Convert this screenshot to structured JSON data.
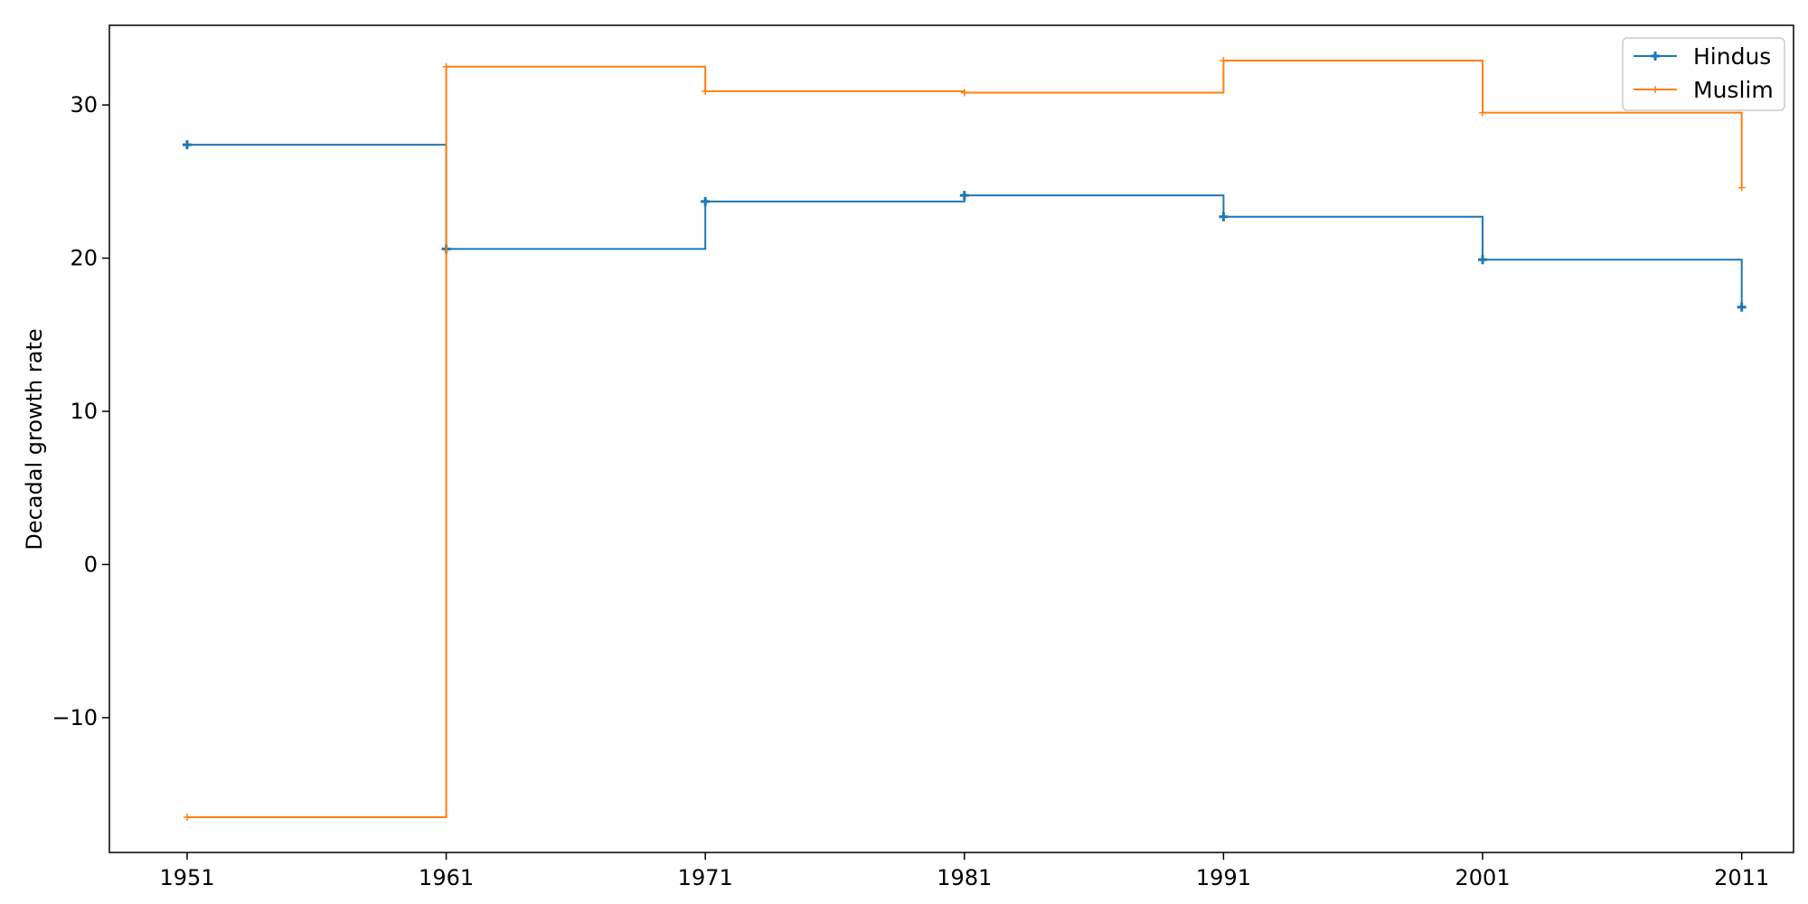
{
  "chart_data": {
    "type": "line",
    "drawstyle": "steps-post",
    "title": "",
    "xlabel": "",
    "ylabel": "Decadal growth rate",
    "x": [
      1951,
      1961,
      1971,
      1981,
      1991,
      2001,
      2011
    ],
    "x_tick_labels": [
      "1951",
      "1961",
      "1971",
      "1981",
      "1991",
      "2001",
      "2011"
    ],
    "xlim": [
      1948,
      2013
    ],
    "ylim": [
      -18.8,
      35.2
    ],
    "y_ticks": [
      -10,
      0,
      10,
      20,
      30
    ],
    "y_tick_labels": [
      "−10",
      "0",
      "10",
      "20",
      "30"
    ],
    "grid": false,
    "legend_position": "top-right",
    "series": [
      {
        "name": "Hindus",
        "color": "#1f77b4",
        "marker": "P",
        "values": [
          27.4,
          20.6,
          23.7,
          24.1,
          22.7,
          19.9,
          16.8
        ]
      },
      {
        "name": "Muslim",
        "color": "#ff7f0e",
        "marker": "+",
        "values": [
          -16.5,
          32.5,
          30.9,
          30.8,
          32.9,
          29.5,
          24.6
        ]
      }
    ]
  }
}
